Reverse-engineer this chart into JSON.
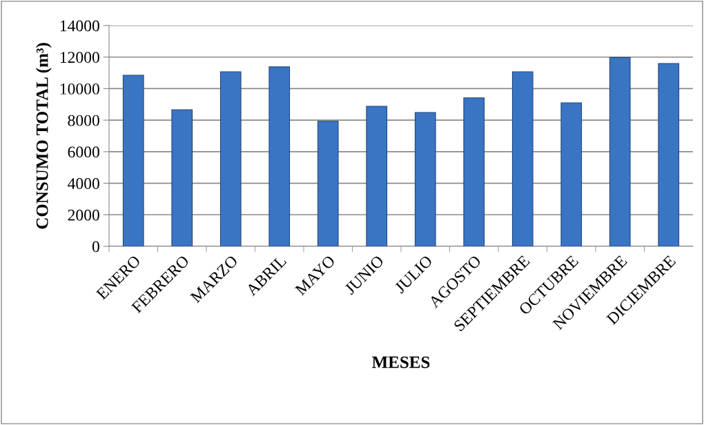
{
  "chart_data": {
    "type": "bar",
    "xlabel": "MESES",
    "ylabel": "CONSUMO TOTAL (m³)",
    "categories": [
      "ENERO",
      "FEBRERO",
      "MARZO",
      "ABRIL",
      "MAYO",
      "JUNIO",
      "JULIO",
      "AGOSTO",
      "SEPTIEMBRE",
      "OCTUBRE",
      "NOVIEMBRE",
      "DICIEMBRE"
    ],
    "values": [
      10850,
      8660,
      11070,
      11380,
      7930,
      8880,
      8490,
      9410,
      11070,
      9100,
      11970,
      11590
    ],
    "color": "#3a75c4",
    "ylim": [
      0,
      14000
    ],
    "yticks": [
      0,
      2000,
      4000,
      6000,
      8000,
      10000,
      12000,
      14000
    ],
    "grid": "y"
  }
}
